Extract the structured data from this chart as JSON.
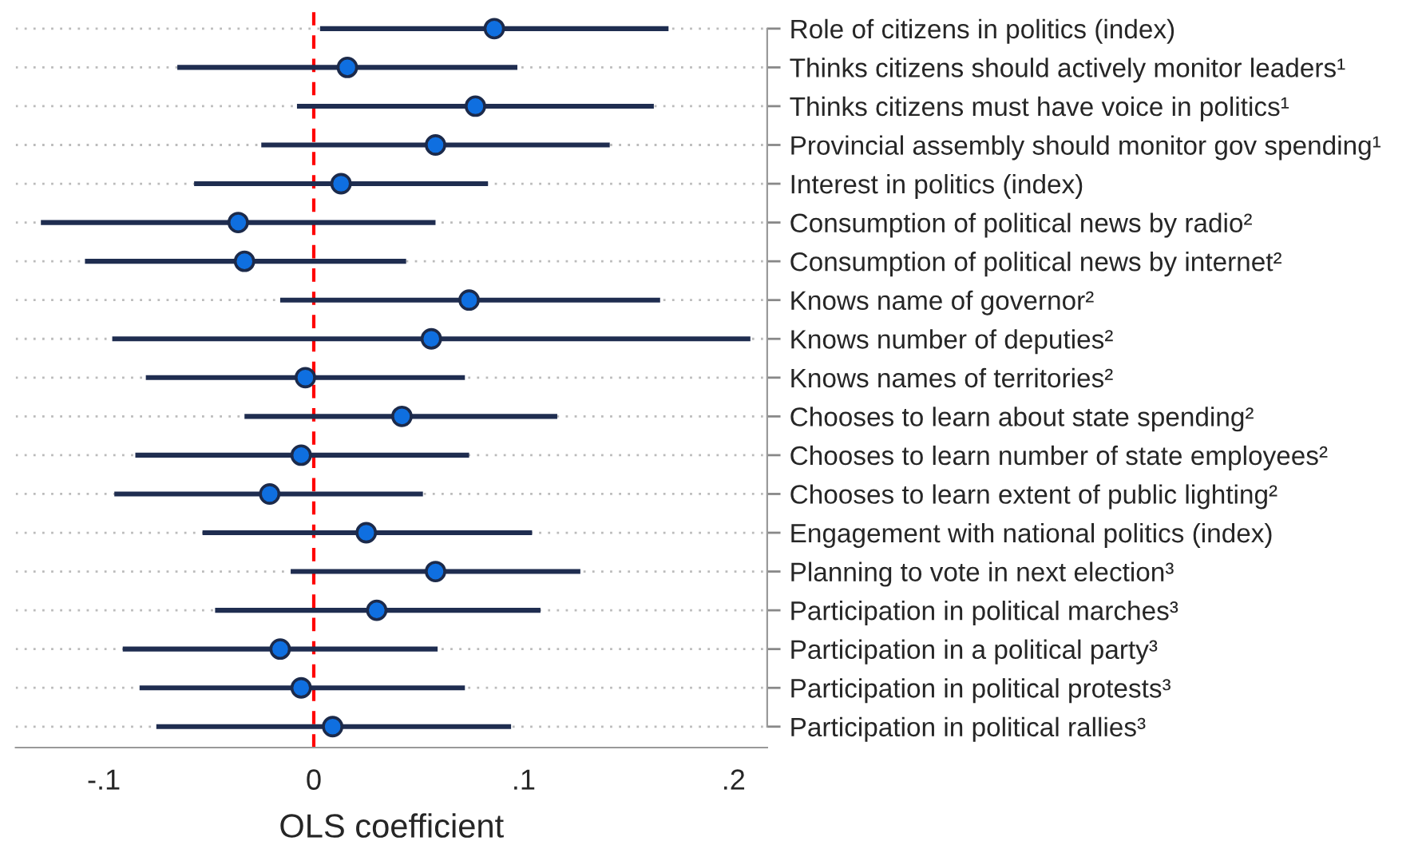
{
  "chart_data": {
    "type": "scatter",
    "orientation": "horizontal",
    "categories": [
      "Role of citizens in politics (index)",
      "Thinks citizens should actively monitor leaders¹",
      "Thinks citizens must have voice in politics¹",
      "Provincial assembly should monitor gov spending¹",
      "Interest in politics (index)",
      "Consumption of political news by radio²",
      "Consumption of political news by internet²",
      "Knows name of governor²",
      "Knows number of deputies²",
      "Knows names of territories²",
      "Chooses to learn about state spending²",
      "Chooses to learn number of state employees²",
      "Chooses to learn extent of public lighting²",
      "Engagement with national politics (index)",
      "Planning to vote in next election³",
      "Participation in political marches³",
      "Participation in a political party³",
      "Participation in political protests³",
      "Participation in political rallies³"
    ],
    "series": [
      {
        "color": "#0f6fe0",
        "values": [
          0.086,
          0.016,
          0.077,
          0.058,
          0.013,
          -0.036,
          -0.033,
          0.074,
          0.056,
          -0.004,
          0.042,
          -0.006,
          -0.021,
          0.025,
          0.058,
          0.03,
          -0.016,
          -0.006,
          0.009
        ],
        "errors": [
          [
            0.003,
            0.169
          ],
          [
            -0.065,
            0.097
          ],
          [
            -0.008,
            0.162
          ],
          [
            -0.025,
            0.141
          ],
          [
            -0.057,
            0.083
          ],
          [
            -0.13,
            0.058
          ],
          [
            -0.109,
            0.044
          ],
          [
            -0.016,
            0.165
          ],
          [
            -0.096,
            0.208
          ],
          [
            -0.08,
            0.072
          ],
          [
            -0.033,
            0.116
          ],
          [
            -0.085,
            0.074
          ],
          [
            -0.095,
            0.052
          ],
          [
            -0.053,
            0.104
          ],
          [
            -0.011,
            0.127
          ],
          [
            -0.047,
            0.108
          ],
          [
            -0.091,
            0.059
          ],
          [
            -0.083,
            0.072
          ],
          [
            -0.075,
            0.094
          ]
        ]
      }
    ],
    "xlim": [
      -0.142,
      0.216
    ],
    "xticks": [
      {
        "value": -0.1,
        "label": "-.1"
      },
      0,
      {
        "value": 0.1,
        "label": ".1"
      },
      {
        "value": 0.2,
        "label": ".2"
      }
    ],
    "xlabel": "OLS coefficient",
    "ref_lines": [
      {
        "axis": "x",
        "value": 0,
        "color": "#ff0000",
        "line_style": "dashed"
      }
    ],
    "grid": "y",
    "marker": "circle"
  }
}
